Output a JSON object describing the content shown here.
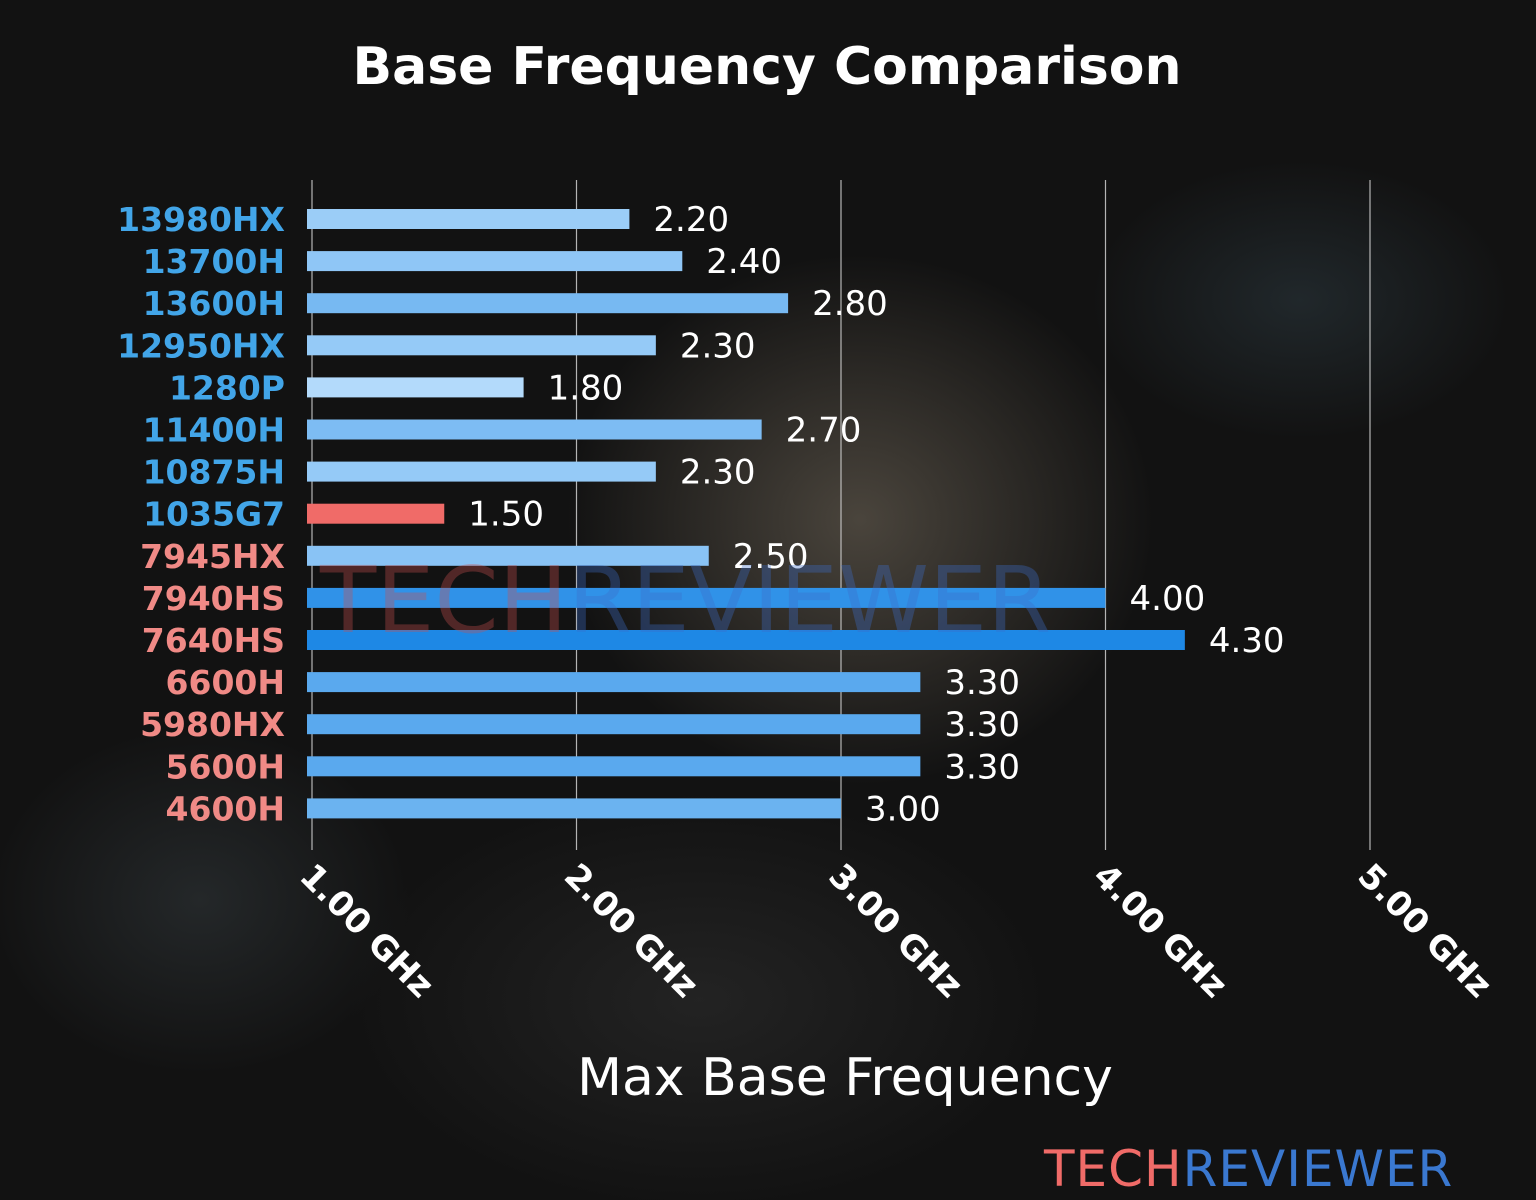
{
  "chart_data": {
    "type": "bar",
    "orientation": "horizontal",
    "title": "Base Frequency Comparison",
    "xlabel": "Max Base Frequency",
    "ylabel": "",
    "xlim": [
      1.0,
      5.0
    ],
    "xticks": [
      1.0,
      2.0,
      3.0,
      4.0,
      5.0
    ],
    "xtick_labels": [
      "1.00 GHz",
      "2.00 GHz",
      "3.00 GHz",
      "4.00 GHz",
      "5.00 GHz"
    ],
    "grid": "vertical",
    "categories": [
      "13980HX",
      "13700H",
      "13600H",
      "12950HX",
      "1280P",
      "11400H",
      "10875H",
      "1035G7",
      "7945HX",
      "7940HS",
      "7640HS",
      "6600H",
      "5980HX",
      "5600H",
      "4600H"
    ],
    "values": [
      2.2,
      2.4,
      2.8,
      2.3,
      1.8,
      2.7,
      2.3,
      1.5,
      2.5,
      4.0,
      4.3,
      3.3,
      3.3,
      3.3,
      3.0
    ],
    "value_labels": [
      "2.20",
      "2.40",
      "2.80",
      "2.30",
      "1.80",
      "2.70",
      "2.30",
      "1.50",
      "2.50",
      "4.00",
      "4.30",
      "3.30",
      "3.30",
      "3.30",
      "3.00"
    ],
    "category_groups": [
      "intel",
      "intel",
      "intel",
      "intel",
      "intel",
      "intel",
      "intel",
      "intel",
      "amd",
      "amd",
      "amd",
      "amd",
      "amd",
      "amd",
      "amd"
    ],
    "colors": {
      "intel_label": "#42a5e8",
      "amd_label": "#f08a86",
      "highlight_bar": "#f06b68",
      "bar_light": "#b3dafb",
      "bar_dark": "#1e88e5",
      "gridline": "#dddddd"
    },
    "highlight_index": 7
  },
  "watermark": {
    "part1": "TECH",
    "part2": "REVIEWER"
  },
  "logo": {
    "part1": "TECH",
    "part2": "REVIEWER",
    "color1": "#f06b68",
    "color2": "#3a78d0"
  }
}
